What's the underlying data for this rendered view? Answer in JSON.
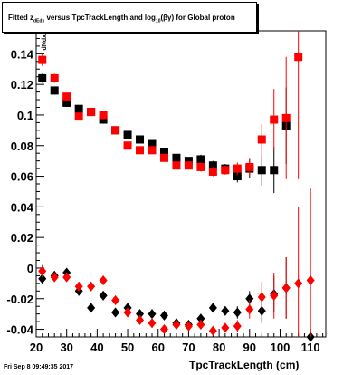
{
  "title": {
    "pre": "Fitted  z",
    "sub1": "dEdx",
    "mid": " versus TpcTrackLength and log",
    "sub2": "10",
    "post": "(βγ) for Global proton"
  },
  "date_stamp": "Fri Sep  8 09:49:35 2017",
  "chart_data": {
    "type": "scatter",
    "title": "Fitted z_dEdx versus TpcTrackLength and log10(βγ) for Global proton",
    "xlabel": "TpcTrackLength (cm)",
    "ylabel": "dNdx",
    "xlim": [
      20,
      115
    ],
    "ylim": [
      -0.045,
      0.155
    ],
    "xticks": [
      20,
      30,
      40,
      50,
      60,
      70,
      80,
      90,
      100,
      110
    ],
    "yticks": [
      -0.04,
      -0.02,
      0,
      0.02,
      0.04,
      0.06,
      0.08,
      0.1,
      0.12,
      0.14
    ],
    "series": [
      {
        "marker": "square",
        "color": "#000000",
        "points": [
          {
            "x": 22,
            "y": 0.124,
            "err": 0.003
          },
          {
            "x": 26,
            "y": 0.116,
            "err": 0.002
          },
          {
            "x": 30,
            "y": 0.108,
            "err": 0.002
          },
          {
            "x": 34,
            "y": 0.104,
            "err": 0.002
          },
          {
            "x": 38,
            "y": 0.102,
            "err": 0.002
          },
          {
            "x": 42,
            "y": 0.097,
            "err": 0.002
          },
          {
            "x": 46,
            "y": 0.09,
            "err": 0.002
          },
          {
            "x": 50,
            "y": 0.087,
            "err": 0.002
          },
          {
            "x": 54,
            "y": 0.084,
            "err": 0.002
          },
          {
            "x": 58,
            "y": 0.081,
            "err": 0.002
          },
          {
            "x": 62,
            "y": 0.076,
            "err": 0.002
          },
          {
            "x": 66,
            "y": 0.072,
            "err": 0.002
          },
          {
            "x": 70,
            "y": 0.07,
            "err": 0.002
          },
          {
            "x": 74,
            "y": 0.071,
            "err": 0.003
          },
          {
            "x": 78,
            "y": 0.067,
            "err": 0.003
          },
          {
            "x": 82,
            "y": 0.065,
            "err": 0.003
          },
          {
            "x": 86,
            "y": 0.06,
            "err": 0.004
          },
          {
            "x": 90,
            "y": 0.065,
            "err": 0.006
          },
          {
            "x": 94,
            "y": 0.064,
            "err": 0.01
          },
          {
            "x": 98,
            "y": 0.064,
            "err": 0.015
          },
          {
            "x": 102,
            "y": 0.093,
            "err": 0.025
          }
        ]
      },
      {
        "marker": "square",
        "color": "#ff0000",
        "points": [
          {
            "x": 22,
            "y": 0.136,
            "err": 0.004
          },
          {
            "x": 26,
            "y": 0.124,
            "err": 0.003
          },
          {
            "x": 30,
            "y": 0.112,
            "err": 0.002
          },
          {
            "x": 34,
            "y": 0.099,
            "err": 0.002
          },
          {
            "x": 38,
            "y": 0.102,
            "err": 0.002
          },
          {
            "x": 42,
            "y": 0.1,
            "err": 0.002
          },
          {
            "x": 46,
            "y": 0.09,
            "err": 0.002
          },
          {
            "x": 50,
            "y": 0.08,
            "err": 0.002
          },
          {
            "x": 54,
            "y": 0.077,
            "err": 0.002
          },
          {
            "x": 58,
            "y": 0.077,
            "err": 0.002
          },
          {
            "x": 62,
            "y": 0.072,
            "err": 0.002
          },
          {
            "x": 66,
            "y": 0.067,
            "err": 0.002
          },
          {
            "x": 70,
            "y": 0.067,
            "err": 0.002
          },
          {
            "x": 74,
            "y": 0.066,
            "err": 0.003
          },
          {
            "x": 78,
            "y": 0.063,
            "err": 0.003
          },
          {
            "x": 82,
            "y": 0.064,
            "err": 0.003
          },
          {
            "x": 86,
            "y": 0.065,
            "err": 0.004
          },
          {
            "x": 90,
            "y": 0.066,
            "err": 0.006
          },
          {
            "x": 94,
            "y": 0.084,
            "err": 0.01
          },
          {
            "x": 98,
            "y": 0.097,
            "err": 0.02
          },
          {
            "x": 102,
            "y": 0.098,
            "err": 0.04
          },
          {
            "x": 106,
            "y": 0.138,
            "err": 0.08
          }
        ]
      },
      {
        "marker": "diamond",
        "color": "#000000",
        "points": [
          {
            "x": 22,
            "y": -0.007,
            "err": 0.003
          },
          {
            "x": 26,
            "y": -0.005,
            "err": 0.003
          },
          {
            "x": 30,
            "y": -0.003,
            "err": 0.003
          },
          {
            "x": 34,
            "y": -0.015,
            "err": 0.003
          },
          {
            "x": 38,
            "y": -0.026,
            "err": 0.003
          },
          {
            "x": 42,
            "y": -0.018,
            "err": 0.003
          },
          {
            "x": 46,
            "y": -0.029,
            "err": 0.003
          },
          {
            "x": 50,
            "y": -0.026,
            "err": 0.003
          },
          {
            "x": 54,
            "y": -0.03,
            "err": 0.003
          },
          {
            "x": 58,
            "y": -0.03,
            "err": 0.003
          },
          {
            "x": 62,
            "y": -0.031,
            "err": 0.003
          },
          {
            "x": 66,
            "y": -0.036,
            "err": 0.003
          },
          {
            "x": 70,
            "y": -0.037,
            "err": 0.003
          },
          {
            "x": 74,
            "y": -0.033,
            "err": 0.003
          },
          {
            "x": 78,
            "y": -0.026,
            "err": 0.003
          },
          {
            "x": 82,
            "y": -0.028,
            "err": 0.003
          },
          {
            "x": 86,
            "y": -0.029,
            "err": 0.004
          },
          {
            "x": 90,
            "y": -0.02,
            "err": 0.005
          },
          {
            "x": 94,
            "y": -0.028,
            "err": 0.008
          },
          {
            "x": 98,
            "y": -0.017,
            "err": 0.012
          },
          {
            "x": 102,
            "y": -0.013,
            "err": 0.02
          },
          {
            "x": 110,
            "y": -0.045,
            "err": 0.002
          }
        ]
      },
      {
        "marker": "diamond",
        "color": "#ff0000",
        "points": [
          {
            "x": 22,
            "y": -0.002,
            "err": 0.004
          },
          {
            "x": 26,
            "y": -0.006,
            "err": 0.003
          },
          {
            "x": 30,
            "y": -0.006,
            "err": 0.003
          },
          {
            "x": 34,
            "y": -0.012,
            "err": 0.003
          },
          {
            "x": 38,
            "y": -0.012,
            "err": 0.003
          },
          {
            "x": 42,
            "y": -0.008,
            "err": 0.003
          },
          {
            "x": 46,
            "y": -0.021,
            "err": 0.003
          },
          {
            "x": 50,
            "y": -0.029,
            "err": 0.003
          },
          {
            "x": 54,
            "y": -0.034,
            "err": 0.003
          },
          {
            "x": 58,
            "y": -0.036,
            "err": 0.003
          },
          {
            "x": 62,
            "y": -0.04,
            "err": 0.003
          },
          {
            "x": 66,
            "y": -0.037,
            "err": 0.003
          },
          {
            "x": 70,
            "y": -0.038,
            "err": 0.003
          },
          {
            "x": 74,
            "y": -0.037,
            "err": 0.003
          },
          {
            "x": 78,
            "y": -0.041,
            "err": 0.003
          },
          {
            "x": 82,
            "y": -0.039,
            "err": 0.003
          },
          {
            "x": 86,
            "y": -0.038,
            "err": 0.004
          },
          {
            "x": 90,
            "y": -0.027,
            "err": 0.006
          },
          {
            "x": 94,
            "y": -0.019,
            "err": 0.01
          },
          {
            "x": 98,
            "y": -0.018,
            "err": 0.015
          },
          {
            "x": 102,
            "y": -0.013,
            "err": 0.02
          },
          {
            "x": 106,
            "y": -0.01,
            "err": 0.05
          },
          {
            "x": 110,
            "y": -0.008,
            "err": 0.06
          }
        ]
      }
    ],
    "grid": false,
    "legend": "none"
  }
}
